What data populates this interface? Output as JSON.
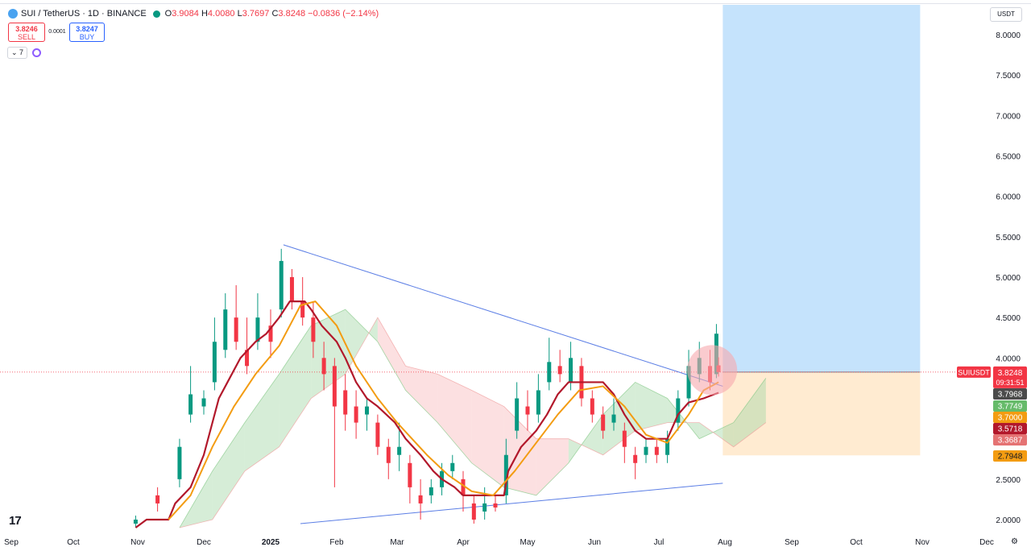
{
  "header": {
    "symbol": "SUI / TetherUS · 1D · BINANCE",
    "ohlc": {
      "o_label": "O",
      "o": "3.9084",
      "h_label": "H",
      "h": "4.0080",
      "l_label": "L",
      "l": "3.7697",
      "c_label": "C",
      "c": "3.8248",
      "change": "−0.0836 (−2.14%)"
    }
  },
  "trade": {
    "sell_price": "3.8246",
    "sell_label": "SELL",
    "spread": "0.0001",
    "buy_price": "3.8247",
    "buy_label": "BUY"
  },
  "indicators": {
    "count_label": "7"
  },
  "currency_label": "USDT",
  "logo_text": "17",
  "colors": {
    "bull": "#089981",
    "bear": "#f23645",
    "kijun": "#b2182b",
    "ema": "#f39c12",
    "cloud_bull": "#a5d6a7",
    "cloud_bear": "#f8bbbd",
    "trendline": "#5b7ee5",
    "target_zone": "#bbdefb",
    "stop_zone": "#ffe9cc",
    "highlight": "#f7a8ae"
  },
  "chart_data": {
    "type": "line",
    "title": "SUI / TetherUS · 1D · BINANCE",
    "ylim": [
      1.9,
      8.3
    ],
    "yticks": [
      "8.0000",
      "7.5000",
      "7.0000",
      "6.5000",
      "6.0000",
      "5.5000",
      "5.0000",
      "4.5000",
      "4.0000",
      "2.5000",
      "2.0000"
    ],
    "xticks": [
      "Sep",
      "Oct",
      "Nov",
      "Dec",
      "2025",
      "Feb",
      "Mar",
      "Apr",
      "May",
      "Jun",
      "Jul",
      "Aug",
      "Sep",
      "Oct",
      "Nov",
      "Dec"
    ],
    "x_range": [
      "2024-09-01",
      "2025-12-31"
    ],
    "series": [
      {
        "key": "kijun",
        "points": [
          [
            "2024-10-31",
            1.9
          ],
          [
            "2024-11-05",
            2.0
          ],
          [
            "2024-11-15",
            2.0
          ],
          [
            "2024-11-18",
            2.2
          ],
          [
            "2024-11-25",
            2.4
          ],
          [
            "2024-12-01",
            2.8
          ],
          [
            "2024-12-05",
            3.2
          ],
          [
            "2024-12-08",
            3.5
          ],
          [
            "2024-12-12",
            3.7
          ],
          [
            "2024-12-18",
            4.0
          ],
          [
            "2024-12-25",
            4.2
          ],
          [
            "2024-12-30",
            4.3
          ],
          [
            "2025-01-05",
            4.5
          ],
          [
            "2025-01-10",
            4.7
          ],
          [
            "2025-01-17",
            4.7
          ],
          [
            "2025-01-20",
            4.6
          ],
          [
            "2025-01-25",
            4.4
          ],
          [
            "2025-02-01",
            4.2
          ],
          [
            "2025-02-05",
            4.0
          ],
          [
            "2025-02-10",
            3.7
          ],
          [
            "2025-02-15",
            3.5
          ],
          [
            "2025-02-20",
            3.4
          ],
          [
            "2025-02-28",
            3.2
          ],
          [
            "2025-03-05",
            3.0
          ],
          [
            "2025-03-12",
            2.8
          ],
          [
            "2025-03-18",
            2.6
          ],
          [
            "2025-03-22",
            2.5
          ],
          [
            "2025-03-28",
            2.4
          ],
          [
            "2025-04-01",
            2.3
          ],
          [
            "2025-04-20",
            2.3
          ],
          [
            "2025-04-22",
            2.6
          ],
          [
            "2025-04-28",
            2.9
          ],
          [
            "2025-05-05",
            3.1
          ],
          [
            "2025-05-10",
            3.3
          ],
          [
            "2025-05-15",
            3.55
          ],
          [
            "2025-05-20",
            3.7
          ],
          [
            "2025-06-05",
            3.7
          ],
          [
            "2025-06-10",
            3.55
          ],
          [
            "2025-06-15",
            3.3
          ],
          [
            "2025-06-20",
            3.1
          ],
          [
            "2025-06-25",
            3.0
          ],
          [
            "2025-07-05",
            3.0
          ],
          [
            "2025-07-10",
            3.3
          ],
          [
            "2025-07-15",
            3.45
          ],
          [
            "2025-07-22",
            3.5
          ],
          [
            "2025-07-29",
            3.57
          ]
        ]
      },
      {
        "key": "ema",
        "points": [
          [
            "2024-11-15",
            2.0
          ],
          [
            "2024-11-25",
            2.3
          ],
          [
            "2024-12-05",
            2.9
          ],
          [
            "2024-12-15",
            3.4
          ],
          [
            "2024-12-25",
            3.8
          ],
          [
            "2025-01-05",
            4.15
          ],
          [
            "2025-01-15",
            4.65
          ],
          [
            "2025-01-22",
            4.7
          ],
          [
            "2025-02-01",
            4.4
          ],
          [
            "2025-02-10",
            3.9
          ],
          [
            "2025-02-20",
            3.5
          ],
          [
            "2025-03-01",
            3.2
          ],
          [
            "2025-03-15",
            2.8
          ],
          [
            "2025-03-25",
            2.55
          ],
          [
            "2025-04-05",
            2.35
          ],
          [
            "2025-04-15",
            2.3
          ],
          [
            "2025-04-25",
            2.6
          ],
          [
            "2025-05-05",
            2.95
          ],
          [
            "2025-05-15",
            3.3
          ],
          [
            "2025-05-25",
            3.6
          ],
          [
            "2025-06-05",
            3.65
          ],
          [
            "2025-06-15",
            3.4
          ],
          [
            "2025-06-25",
            3.05
          ],
          [
            "2025-07-05",
            2.95
          ],
          [
            "2025-07-15",
            3.3
          ],
          [
            "2025-07-22",
            3.6
          ],
          [
            "2025-07-29",
            3.7
          ]
        ]
      },
      {
        "key": "trend_upper",
        "points": [
          [
            "2025-01-07",
            5.4
          ],
          [
            "2025-07-31",
            3.65
          ]
        ]
      },
      {
        "key": "trend_lower",
        "points": [
          [
            "2025-01-15",
            1.95
          ],
          [
            "2025-07-31",
            2.45
          ]
        ]
      }
    ],
    "candles": [
      {
        "date": "2024-10-31",
        "open": 1.95,
        "close": 2.0,
        "high": 2.05,
        "low": 1.9
      },
      {
        "date": "2024-11-10",
        "open": 2.3,
        "close": 2.2,
        "high": 2.4,
        "low": 2.1
      },
      {
        "date": "2024-11-20",
        "open": 2.5,
        "close": 2.9,
        "high": 3.0,
        "low": 2.4
      },
      {
        "date": "2024-11-25",
        "open": 3.3,
        "close": 3.55,
        "high": 3.9,
        "low": 3.2
      },
      {
        "date": "2024-12-01",
        "open": 3.4,
        "close": 3.5,
        "high": 3.6,
        "low": 3.3
      },
      {
        "date": "2024-12-06",
        "open": 3.7,
        "close": 4.2,
        "high": 4.5,
        "low": 3.6
      },
      {
        "date": "2024-12-11",
        "open": 4.1,
        "close": 4.6,
        "high": 4.8,
        "low": 4.0
      },
      {
        "date": "2024-12-16",
        "open": 4.5,
        "close": 4.2,
        "high": 4.9,
        "low": 4.1
      },
      {
        "date": "2024-12-21",
        "open": 4.1,
        "close": 3.9,
        "high": 4.5,
        "low": 3.8
      },
      {
        "date": "2024-12-26",
        "open": 4.2,
        "close": 4.5,
        "high": 4.8,
        "low": 4.1
      },
      {
        "date": "2025-01-01",
        "open": 4.4,
        "close": 4.2,
        "high": 4.6,
        "low": 4.0
      },
      {
        "date": "2025-01-06",
        "open": 4.6,
        "close": 5.2,
        "high": 5.35,
        "low": 4.5
      },
      {
        "date": "2025-01-11",
        "open": 5.0,
        "close": 4.7,
        "high": 5.1,
        "low": 4.6
      },
      {
        "date": "2025-01-16",
        "open": 4.7,
        "close": 4.5,
        "high": 5.0,
        "low": 4.4
      },
      {
        "date": "2025-01-21",
        "open": 4.5,
        "close": 4.2,
        "high": 4.7,
        "low": 4.0
      },
      {
        "date": "2025-01-26",
        "open": 4.0,
        "close": 3.8,
        "high": 4.2,
        "low": 3.6
      },
      {
        "date": "2025-01-31",
        "open": 3.9,
        "close": 3.4,
        "high": 4.0,
        "low": 2.4
      },
      {
        "date": "2025-02-05",
        "open": 3.6,
        "close": 3.3,
        "high": 3.8,
        "low": 3.1
      },
      {
        "date": "2025-02-10",
        "open": 3.4,
        "close": 3.2,
        "high": 3.6,
        "low": 3.0
      },
      {
        "date": "2025-02-15",
        "open": 3.3,
        "close": 3.4,
        "high": 3.5,
        "low": 3.1
      },
      {
        "date": "2025-02-20",
        "open": 3.2,
        "close": 2.9,
        "high": 3.3,
        "low": 2.8
      },
      {
        "date": "2025-02-25",
        "open": 2.9,
        "close": 2.7,
        "high": 3.0,
        "low": 2.5
      },
      {
        "date": "2025-03-02",
        "open": 2.8,
        "close": 2.9,
        "high": 3.2,
        "low": 2.6
      },
      {
        "date": "2025-03-07",
        "open": 2.7,
        "close": 2.4,
        "high": 2.8,
        "low": 2.2
      },
      {
        "date": "2025-03-12",
        "open": 2.3,
        "close": 2.2,
        "high": 2.5,
        "low": 2.0
      },
      {
        "date": "2025-03-17",
        "open": 2.3,
        "close": 2.4,
        "high": 2.5,
        "low": 2.2
      },
      {
        "date": "2025-03-22",
        "open": 2.4,
        "close": 2.6,
        "high": 2.7,
        "low": 2.3
      },
      {
        "date": "2025-03-27",
        "open": 2.6,
        "close": 2.7,
        "high": 2.8,
        "low": 2.5
      },
      {
        "date": "2025-04-01",
        "open": 2.5,
        "close": 2.3,
        "high": 2.6,
        "low": 2.1
      },
      {
        "date": "2025-04-06",
        "open": 2.2,
        "close": 2.0,
        "high": 2.3,
        "low": 1.95
      },
      {
        "date": "2025-04-11",
        "open": 2.1,
        "close": 2.2,
        "high": 2.4,
        "low": 2.0
      },
      {
        "date": "2025-04-16",
        "open": 2.2,
        "close": 2.15,
        "high": 2.3,
        "low": 2.1
      },
      {
        "date": "2025-04-21",
        "open": 2.3,
        "close": 2.8,
        "high": 3.0,
        "low": 2.2
      },
      {
        "date": "2025-04-26",
        "open": 3.1,
        "close": 3.5,
        "high": 3.7,
        "low": 3.0
      },
      {
        "date": "2025-05-01",
        "open": 3.4,
        "close": 3.3,
        "high": 3.6,
        "low": 3.1
      },
      {
        "date": "2025-05-06",
        "open": 3.3,
        "close": 3.6,
        "high": 3.8,
        "low": 3.2
      },
      {
        "date": "2025-05-11",
        "open": 3.7,
        "close": 3.95,
        "high": 4.25,
        "low": 3.6
      },
      {
        "date": "2025-05-16",
        "open": 3.9,
        "close": 3.8,
        "high": 4.1,
        "low": 3.7
      },
      {
        "date": "2025-05-21",
        "open": 3.7,
        "close": 4.0,
        "high": 4.2,
        "low": 3.6
      },
      {
        "date": "2025-05-26",
        "open": 3.9,
        "close": 3.5,
        "high": 4.0,
        "low": 3.4
      },
      {
        "date": "2025-05-31",
        "open": 3.5,
        "close": 3.3,
        "high": 3.6,
        "low": 3.2
      },
      {
        "date": "2025-06-05",
        "open": 3.3,
        "close": 3.1,
        "high": 3.4,
        "low": 3.0
      },
      {
        "date": "2025-06-10",
        "open": 3.2,
        "close": 3.3,
        "high": 3.5,
        "low": 3.1
      },
      {
        "date": "2025-06-15",
        "open": 3.1,
        "close": 2.9,
        "high": 3.2,
        "low": 2.7
      },
      {
        "date": "2025-06-20",
        "open": 2.8,
        "close": 2.7,
        "high": 2.9,
        "low": 2.5
      },
      {
        "date": "2025-06-25",
        "open": 2.8,
        "close": 2.9,
        "high": 3.0,
        "low": 2.7
      },
      {
        "date": "2025-06-30",
        "open": 2.9,
        "close": 2.8,
        "high": 3.0,
        "low": 2.7
      },
      {
        "date": "2025-07-05",
        "open": 2.8,
        "close": 3.0,
        "high": 3.1,
        "low": 2.7
      },
      {
        "date": "2025-07-10",
        "open": 3.2,
        "close": 3.5,
        "high": 3.6,
        "low": 3.1
      },
      {
        "date": "2025-07-15",
        "open": 3.5,
        "close": 3.9,
        "high": 4.1,
        "low": 3.4
      },
      {
        "date": "2025-07-20",
        "open": 3.8,
        "close": 4.0,
        "high": 4.2,
        "low": 3.7
      },
      {
        "date": "2025-07-25",
        "open": 3.9,
        "close": 3.7,
        "high": 4.1,
        "low": 3.6
      },
      {
        "date": "2025-07-28",
        "open": 3.8,
        "close": 4.3,
        "high": 4.42,
        "low": 3.75
      },
      {
        "date": "2025-07-29",
        "open": 3.9084,
        "close": 3.8248,
        "high": 4.008,
        "low": 3.7697
      }
    ],
    "cloud": [
      {
        "date": "2024-11-20",
        "a": 1.9,
        "b": 1.9
      },
      {
        "date": "2024-12-05",
        "a": 2.6,
        "b": 2.0
      },
      {
        "date": "2024-12-20",
        "a": 3.2,
        "b": 2.6
      },
      {
        "date": "2025-01-05",
        "a": 3.8,
        "b": 2.9
      },
      {
        "date": "2025-01-20",
        "a": 4.4,
        "b": 3.5
      },
      {
        "date": "2025-02-05",
        "a": 4.6,
        "b": 3.8
      },
      {
        "date": "2025-02-20",
        "a": 4.2,
        "b": 4.5
      },
      {
        "date": "2025-03-05",
        "a": 3.6,
        "b": 3.9
      },
      {
        "date": "2025-03-20",
        "a": 3.2,
        "b": 3.8
      },
      {
        "date": "2025-04-05",
        "a": 2.7,
        "b": 3.6
      },
      {
        "date": "2025-04-20",
        "a": 2.4,
        "b": 3.4
      },
      {
        "date": "2025-05-05",
        "a": 2.3,
        "b": 3.0
      },
      {
        "date": "2025-05-20",
        "a": 2.7,
        "b": 3.0
      },
      {
        "date": "2025-06-05",
        "a": 3.3,
        "b": 2.8
      },
      {
        "date": "2025-06-20",
        "a": 3.7,
        "b": 3.1
      },
      {
        "date": "2025-07-05",
        "a": 3.5,
        "b": 3.2
      },
      {
        "date": "2025-07-20",
        "a": 3.0,
        "b": 3.2
      },
      {
        "date": "2025-08-05",
        "a": 3.2,
        "b": 2.9
      },
      {
        "date": "2025-08-20",
        "a": 3.75,
        "b": 3.2
      }
    ],
    "position": {
      "start": "2025-07-31",
      "end": "2025-10-31",
      "entry": 3.8248,
      "target": 8.4,
      "stop": 2.7948
    },
    "highlight": {
      "date": "2025-07-26",
      "price": 3.85
    },
    "price_tags": [
      {
        "key": "last",
        "label": "SUIUSDT",
        "value": "3.8248",
        "time": "09:31:51",
        "price": 3.8248
      },
      {
        "key": "t1",
        "value": "3.7968",
        "price": 3.7968
      },
      {
        "key": "t2",
        "value": "3.7749",
        "price": 3.7749
      },
      {
        "key": "t3",
        "value": "3.7000",
        "price": 3.7
      },
      {
        "key": "t4",
        "value": "3.5718",
        "price": 3.5718
      },
      {
        "key": "t5",
        "value": "3.3687",
        "price": 3.3687
      },
      {
        "key": "t6",
        "value": "2.7948",
        "price": 2.7948
      }
    ]
  }
}
